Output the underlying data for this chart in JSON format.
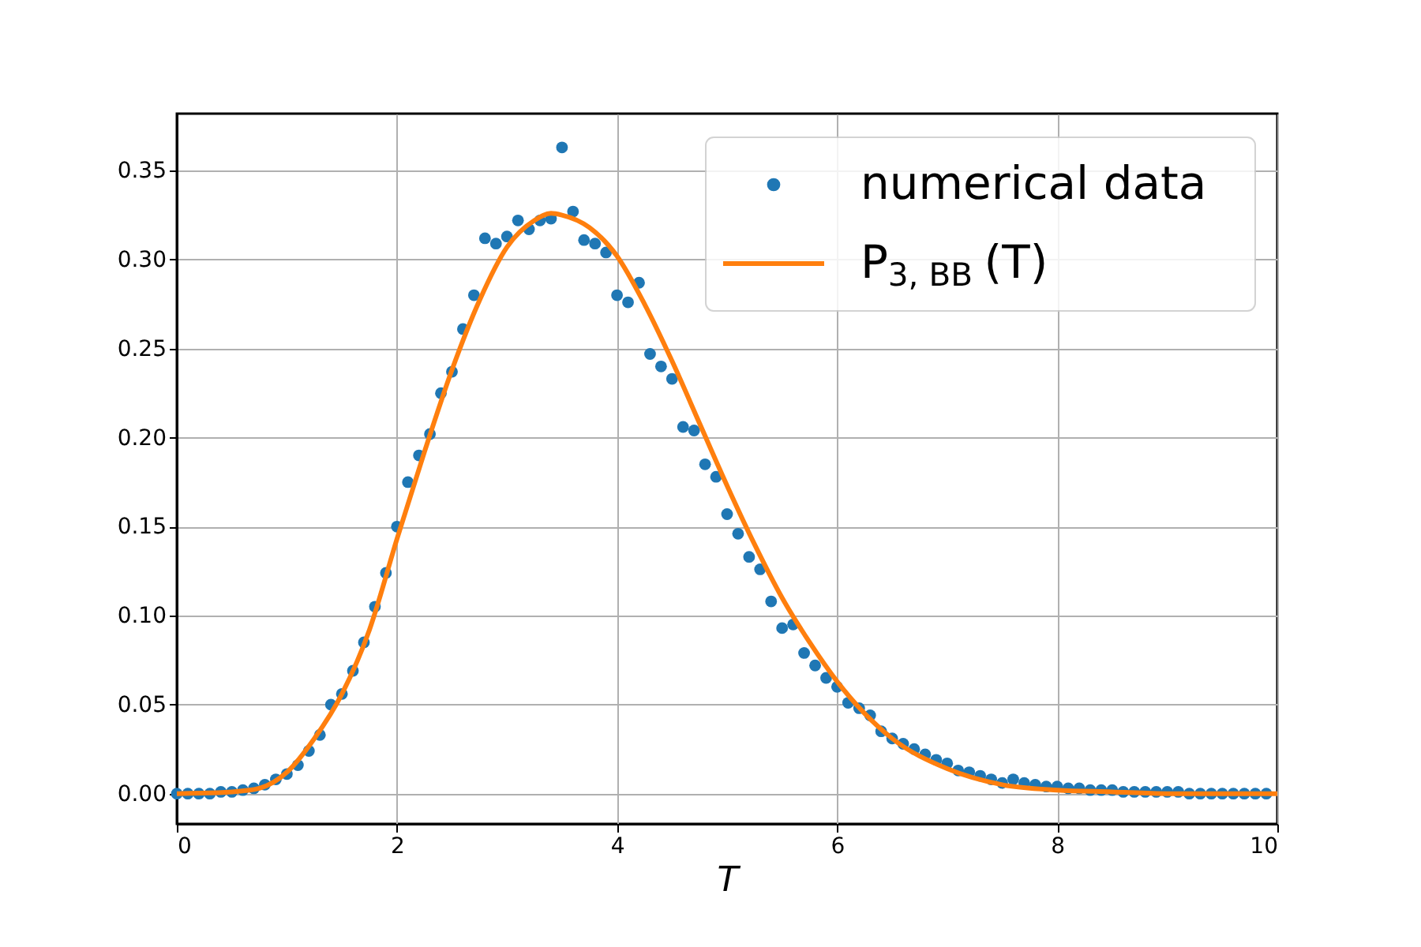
{
  "chart_data": {
    "type": "scatter",
    "xlabel": "T",
    "xlim": [
      0,
      10
    ],
    "xticks": [
      0,
      2,
      4,
      6,
      8,
      10
    ],
    "ylim": [
      -0.017,
      0.382
    ],
    "yticks": [
      {
        "value": 0,
        "label": "0.00"
      },
      0.05,
      {
        "value": 0.1,
        "label": "0.10"
      },
      0.15,
      {
        "value": 0.2,
        "label": "0.20"
      },
      0.25,
      {
        "value": 0.3,
        "label": "0.30"
      },
      0.35
    ],
    "grid": true,
    "legend": "top right",
    "series": [
      {
        "name": "numerical data",
        "marker": "circle",
        "color": "#1f77b4",
        "x": [
          0,
          0.1,
          0.2,
          0.3,
          0.4,
          0.5,
          0.6,
          0.7,
          0.8,
          0.9,
          1.0,
          1.1,
          1.2,
          1.3,
          1.4,
          1.5,
          1.6,
          1.7,
          1.8,
          1.9,
          2.0,
          2.1,
          2.2,
          2.3,
          2.4,
          2.5,
          2.6,
          2.7,
          2.8,
          2.9,
          3.0,
          3.1,
          3.2,
          3.3,
          3.4,
          3.5,
          3.6,
          3.7,
          3.8,
          3.9,
          4.0,
          4.1,
          4.2,
          4.3,
          4.4,
          4.5,
          4.6,
          4.7,
          4.8,
          4.9,
          5.0,
          5.1,
          5.2,
          5.3,
          5.4,
          5.5,
          5.6,
          5.7,
          5.8,
          5.9,
          6.0,
          6.1,
          6.2,
          6.3,
          6.4,
          6.5,
          6.6,
          6.7,
          6.8,
          6.9,
          7.0,
          7.1,
          7.2,
          7.3,
          7.4,
          7.5,
          7.6,
          7.7,
          7.8,
          7.9,
          8.0,
          8.1,
          8.2,
          8.3,
          8.4,
          8.5,
          8.6,
          8.7,
          8.8,
          8.9,
          9.0,
          9.1,
          9.2,
          9.3,
          9.4,
          9.5,
          9.6,
          9.7,
          9.8,
          9.9
        ],
        "values": [
          0.0,
          0.0,
          0.0,
          0.0,
          0.001,
          0.001,
          0.002,
          0.003,
          0.005,
          0.008,
          0.011,
          0.016,
          0.024,
          0.033,
          0.05,
          0.056,
          0.069,
          0.085,
          0.105,
          0.124,
          0.15,
          0.175,
          0.19,
          0.202,
          0.225,
          0.237,
          0.261,
          0.28,
          0.312,
          0.309,
          0.313,
          0.322,
          0.317,
          0.322,
          0.323,
          0.363,
          0.327,
          0.311,
          0.309,
          0.304,
          0.28,
          0.276,
          0.287,
          0.247,
          0.24,
          0.233,
          0.206,
          0.204,
          0.185,
          0.178,
          0.157,
          0.146,
          0.133,
          0.126,
          0.108,
          0.093,
          0.095,
          0.079,
          0.072,
          0.065,
          0.06,
          0.051,
          0.048,
          0.044,
          0.035,
          0.031,
          0.028,
          0.025,
          0.022,
          0.019,
          0.017,
          0.013,
          0.012,
          0.01,
          0.008,
          0.006,
          0.008,
          0.006,
          0.005,
          0.004,
          0.004,
          0.003,
          0.003,
          0.002,
          0.002,
          0.002,
          0.001,
          0.001,
          0.001,
          0.001,
          0.001,
          0.001,
          0.0,
          0.0,
          0.0,
          0.0,
          0.0,
          0.0,
          0.0,
          0.0
        ]
      },
      {
        "name": "P$_{3, BB}$(T)",
        "type": "line",
        "line_style": "solid",
        "color": "#ff7f0e",
        "x": [
          0,
          0.5,
          0.75,
          1.0,
          1.25,
          1.5,
          1.75,
          2.0,
          2.25,
          2.5,
          2.75,
          3.0,
          3.25,
          3.4,
          3.5,
          3.75,
          4.0,
          4.25,
          4.5,
          4.75,
          5.0,
          5.25,
          5.5,
          5.75,
          6.0,
          6.5,
          7.0,
          7.5,
          8.0,
          8.5,
          9.0,
          10.0
        ],
        "values": [
          0,
          0.001,
          0.003,
          0.012,
          0.031,
          0.056,
          0.092,
          0.143,
          0.192,
          0.238,
          0.277,
          0.307,
          0.322,
          0.326,
          0.325,
          0.318,
          0.302,
          0.275,
          0.243,
          0.208,
          0.173,
          0.14,
          0.11,
          0.085,
          0.063,
          0.031,
          0.014,
          0.005,
          0.002,
          0.001,
          0.0,
          0.0
        ]
      }
    ]
  }
}
